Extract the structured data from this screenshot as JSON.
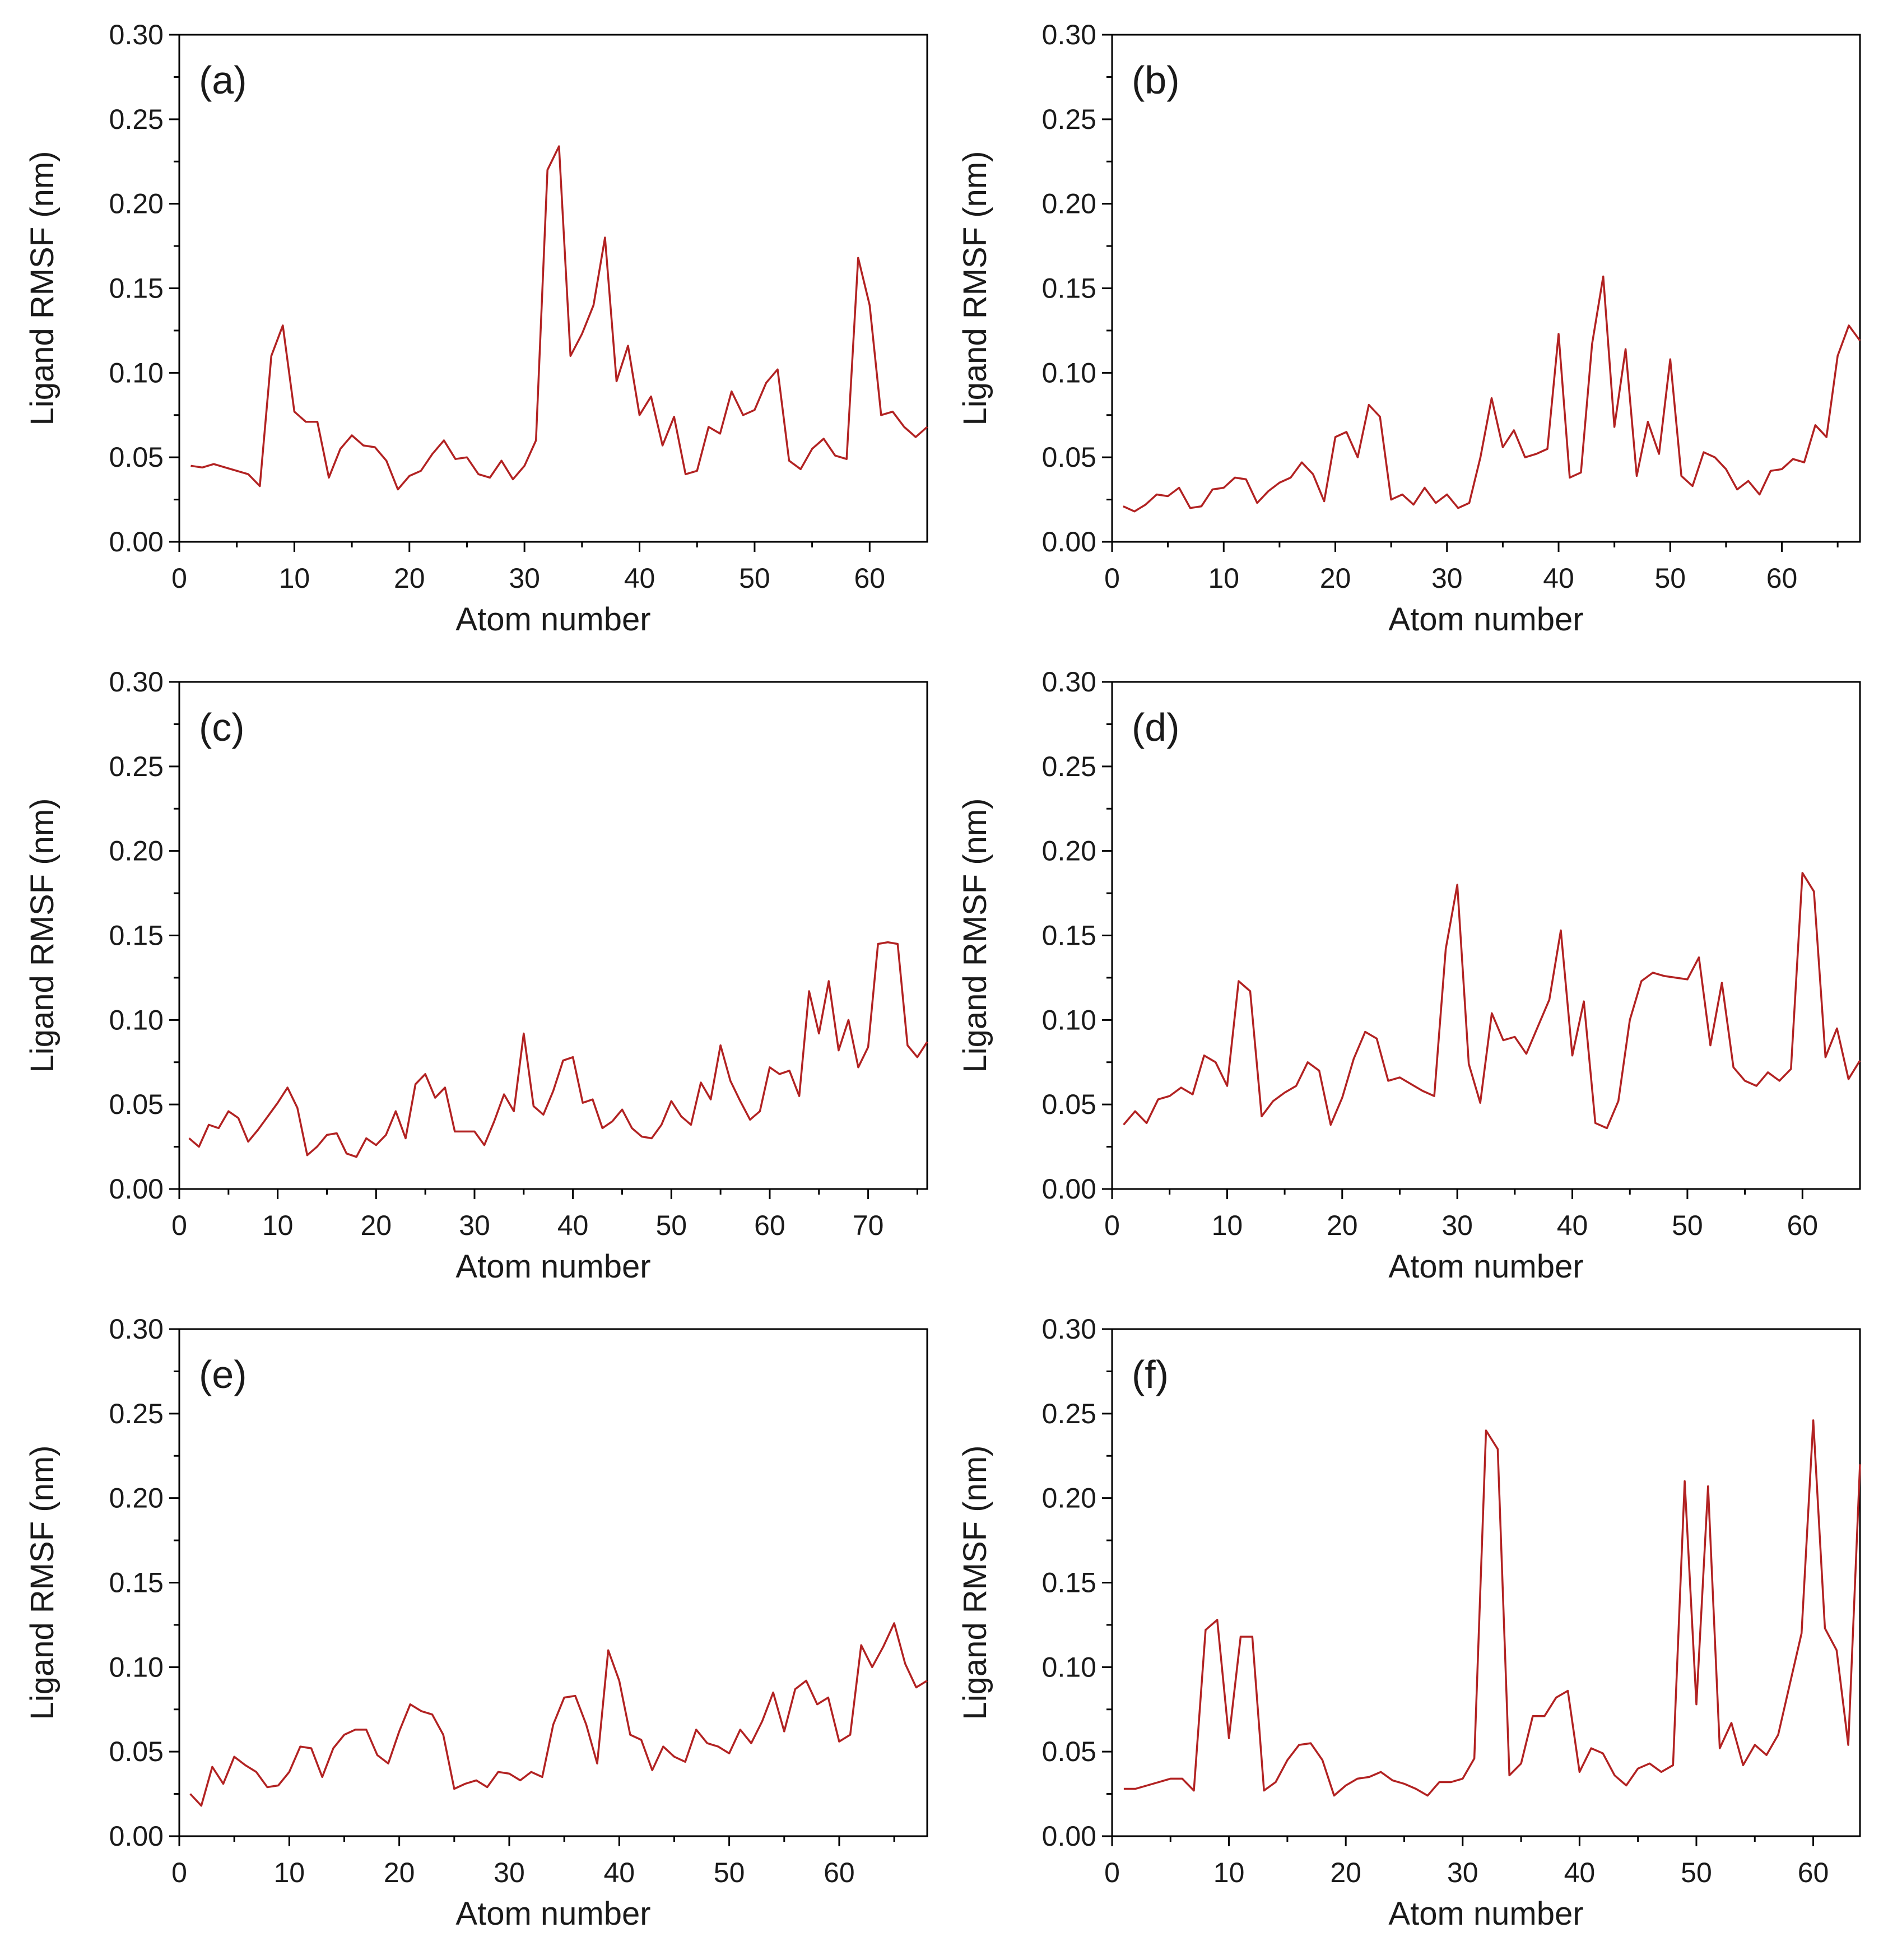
{
  "style": {
    "line_color": "#b22222",
    "axis_color": "#000000",
    "background": "#ffffff"
  },
  "chart_data": [
    {
      "type": "line",
      "panel_label": "(a)",
      "xlabel": "Atom number",
      "ylabel": "Ligand RMSF (nm)",
      "xlim": [
        0,
        65
      ],
      "ylim": [
        0,
        0.3
      ],
      "xticks": [
        0,
        10,
        20,
        30,
        40,
        50,
        60
      ],
      "xtick_labels": [
        "0",
        "10",
        "20",
        "30",
        "40",
        "50",
        "60"
      ],
      "yticks": [
        0,
        0.05,
        0.1,
        0.15,
        0.2,
        0.25,
        0.3
      ],
      "ytick_labels": [
        "0.00",
        "0.05",
        "0.10",
        "0.15",
        "0.20",
        "0.25",
        "0.30"
      ],
      "series": [
        {
          "name": "RMSF",
          "x_start": 1,
          "values": [
            0.045,
            0.044,
            0.046,
            0.044,
            0.042,
            0.04,
            0.033,
            0.11,
            0.128,
            0.077,
            0.071,
            0.071,
            0.038,
            0.055,
            0.063,
            0.057,
            0.056,
            0.048,
            0.031,
            0.039,
            0.042,
            0.052,
            0.06,
            0.049,
            0.05,
            0.04,
            0.038,
            0.048,
            0.037,
            0.045,
            0.06,
            0.22,
            0.234,
            0.11,
            0.123,
            0.14,
            0.18,
            0.095,
            0.116,
            0.075,
            0.086,
            0.057,
            0.074,
            0.04,
            0.042,
            0.068,
            0.064,
            0.089,
            0.075,
            0.078,
            0.094,
            0.102,
            0.048,
            0.043,
            0.055,
            0.061,
            0.051,
            0.049,
            0.168,
            0.14,
            0.075,
            0.077,
            0.068,
            0.062,
            0.068
          ]
        }
      ]
    },
    {
      "type": "line",
      "panel_label": "(b)",
      "xlabel": "Atom number",
      "ylabel": "Ligand RMSF (nm)",
      "xlim": [
        0,
        67
      ],
      "ylim": [
        0,
        0.3
      ],
      "xticks": [
        0,
        10,
        20,
        30,
        40,
        50,
        60
      ],
      "xtick_labels": [
        "0",
        "10",
        "20",
        "30",
        "40",
        "50",
        "60"
      ],
      "yticks": [
        0,
        0.05,
        0.1,
        0.15,
        0.2,
        0.25,
        0.3
      ],
      "ytick_labels": [
        "0.00",
        "0.05",
        "0.10",
        "0.15",
        "0.20",
        "0.25",
        "0.30"
      ],
      "series": [
        {
          "name": "RMSF",
          "x_start": 1,
          "values": [
            0.021,
            0.018,
            0.022,
            0.028,
            0.027,
            0.032,
            0.02,
            0.021,
            0.031,
            0.032,
            0.038,
            0.037,
            0.023,
            0.03,
            0.035,
            0.038,
            0.047,
            0.04,
            0.024,
            0.062,
            0.065,
            0.05,
            0.081,
            0.074,
            0.025,
            0.028,
            0.022,
            0.032,
            0.023,
            0.028,
            0.02,
            0.023,
            0.05,
            0.085,
            0.056,
            0.066,
            0.05,
            0.052,
            0.055,
            0.123,
            0.038,
            0.041,
            0.117,
            0.157,
            0.068,
            0.114,
            0.039,
            0.071,
            0.052,
            0.108,
            0.039,
            0.033,
            0.053,
            0.05,
            0.043,
            0.031,
            0.036,
            0.028,
            0.042,
            0.043,
            0.049,
            0.047,
            0.069,
            0.062,
            0.11,
            0.128,
            0.119
          ]
        }
      ]
    },
    {
      "type": "line",
      "panel_label": "(c)",
      "xlabel": "Atom number",
      "ylabel": "Ligand RMSF (nm)",
      "xlim": [
        0,
        76
      ],
      "ylim": [
        0,
        0.3
      ],
      "xticks": [
        0,
        10,
        20,
        30,
        40,
        50,
        60,
        70
      ],
      "xtick_labels": [
        "0",
        "10",
        "20",
        "30",
        "40",
        "50",
        "60",
        "70"
      ],
      "yticks": [
        0,
        0.05,
        0.1,
        0.15,
        0.2,
        0.25,
        0.3
      ],
      "ytick_labels": [
        "0.00",
        "0.05",
        "0.10",
        "0.15",
        "0.20",
        "0.25",
        "0.30"
      ],
      "series": [
        {
          "name": "RMSF",
          "x_start": 1,
          "values": [
            0.03,
            0.025,
            0.038,
            0.036,
            0.046,
            0.042,
            0.028,
            0.035,
            0.043,
            0.051,
            0.06,
            0.048,
            0.02,
            0.025,
            0.032,
            0.033,
            0.021,
            0.019,
            0.03,
            0.026,
            0.032,
            0.046,
            0.03,
            0.062,
            0.068,
            0.054,
            0.06,
            0.034,
            0.034,
            0.034,
            0.026,
            0.04,
            0.056,
            0.046,
            0.092,
            0.049,
            0.044,
            0.058,
            0.076,
            0.078,
            0.051,
            0.053,
            0.036,
            0.04,
            0.047,
            0.036,
            0.031,
            0.03,
            0.038,
            0.052,
            0.043,
            0.038,
            0.063,
            0.053,
            0.085,
            0.064,
            0.052,
            0.041,
            0.046,
            0.072,
            0.068,
            0.07,
            0.055,
            0.117,
            0.092,
            0.123,
            0.082,
            0.1,
            0.072,
            0.084,
            0.145,
            0.146,
            0.145,
            0.085,
            0.078,
            0.087
          ]
        }
      ]
    },
    {
      "type": "line",
      "panel_label": "(d)",
      "xlabel": "Atom number",
      "ylabel": "Ligand RMSF (nm)",
      "xlim": [
        0,
        65
      ],
      "ylim": [
        0,
        0.3
      ],
      "xticks": [
        0,
        10,
        20,
        30,
        40,
        50,
        60
      ],
      "xtick_labels": [
        "0",
        "10",
        "20",
        "30",
        "40",
        "50",
        "60"
      ],
      "yticks": [
        0,
        0.05,
        0.1,
        0.15,
        0.2,
        0.25,
        0.3
      ],
      "ytick_labels": [
        "0.00",
        "0.05",
        "0.10",
        "0.15",
        "0.20",
        "0.25",
        "0.30"
      ],
      "series": [
        {
          "name": "RMSF",
          "x_start": 1,
          "values": [
            0.038,
            0.046,
            0.039,
            0.053,
            0.055,
            0.06,
            0.056,
            0.079,
            0.075,
            0.061,
            0.123,
            0.117,
            0.043,
            0.052,
            0.057,
            0.061,
            0.075,
            0.07,
            0.038,
            0.054,
            0.077,
            0.093,
            0.089,
            0.064,
            0.066,
            0.062,
            0.058,
            0.055,
            0.142,
            0.18,
            0.074,
            0.051,
            0.104,
            0.088,
            0.09,
            0.08,
            0.096,
            0.112,
            0.153,
            0.079,
            0.111,
            0.039,
            0.036,
            0.052,
            0.1,
            0.123,
            0.128,
            0.126,
            0.125,
            0.124,
            0.137,
            0.085,
            0.122,
            0.072,
            0.064,
            0.061,
            0.069,
            0.064,
            0.071,
            0.187,
            0.176,
            0.078,
            0.095,
            0.065,
            0.076
          ]
        }
      ]
    },
    {
      "type": "line",
      "panel_label": "(e)",
      "xlabel": "Atom number",
      "ylabel": "Ligand RMSF (nm)",
      "xlim": [
        0,
        68
      ],
      "ylim": [
        0,
        0.3
      ],
      "xticks": [
        0,
        10,
        20,
        30,
        40,
        50,
        60
      ],
      "xtick_labels": [
        "0",
        "10",
        "20",
        "30",
        "40",
        "50",
        "60"
      ],
      "yticks": [
        0,
        0.05,
        0.1,
        0.15,
        0.2,
        0.25,
        0.3
      ],
      "ytick_labels": [
        "0.00",
        "0.05",
        "0.10",
        "0.15",
        "0.20",
        "0.25",
        "0.30"
      ],
      "series": [
        {
          "name": "RMSF",
          "x_start": 1,
          "values": [
            0.025,
            0.018,
            0.041,
            0.031,
            0.047,
            0.042,
            0.038,
            0.029,
            0.03,
            0.038,
            0.053,
            0.052,
            0.035,
            0.052,
            0.06,
            0.063,
            0.063,
            0.048,
            0.043,
            0.062,
            0.078,
            0.074,
            0.072,
            0.06,
            0.028,
            0.031,
            0.033,
            0.029,
            0.038,
            0.037,
            0.033,
            0.038,
            0.035,
            0.066,
            0.082,
            0.083,
            0.066,
            0.043,
            0.11,
            0.092,
            0.06,
            0.057,
            0.039,
            0.053,
            0.047,
            0.044,
            0.063,
            0.055,
            0.053,
            0.049,
            0.063,
            0.055,
            0.068,
            0.085,
            0.062,
            0.087,
            0.092,
            0.078,
            0.082,
            0.056,
            0.06,
            0.113,
            0.1,
            0.112,
            0.126,
            0.102,
            0.088,
            0.092
          ]
        }
      ]
    },
    {
      "type": "line",
      "panel_label": "(f)",
      "xlabel": "Atom number",
      "ylabel": "Ligand RMSF (nm)",
      "xlim": [
        0,
        64
      ],
      "ylim": [
        0,
        0.3
      ],
      "xticks": [
        0,
        10,
        20,
        30,
        40,
        50,
        60
      ],
      "xtick_labels": [
        "0",
        "10",
        "20",
        "30",
        "40",
        "50",
        "60"
      ],
      "yticks": [
        0,
        0.05,
        0.1,
        0.15,
        0.2,
        0.25,
        0.3
      ],
      "ytick_labels": [
        "0.00",
        "0.05",
        "0.10",
        "0.15",
        "0.20",
        "0.25",
        "0.30"
      ],
      "series": [
        {
          "name": "RMSF",
          "x_start": 1,
          "values": [
            0.028,
            0.028,
            0.03,
            0.032,
            0.034,
            0.034,
            0.027,
            0.122,
            0.128,
            0.058,
            0.118,
            0.118,
            0.027,
            0.032,
            0.045,
            0.054,
            0.055,
            0.045,
            0.024,
            0.03,
            0.034,
            0.035,
            0.038,
            0.033,
            0.031,
            0.028,
            0.024,
            0.032,
            0.032,
            0.034,
            0.046,
            0.24,
            0.229,
            0.036,
            0.043,
            0.071,
            0.071,
            0.082,
            0.086,
            0.038,
            0.052,
            0.049,
            0.036,
            0.03,
            0.04,
            0.043,
            0.038,
            0.042,
            0.21,
            0.078,
            0.207,
            0.052,
            0.067,
            0.042,
            0.054,
            0.048,
            0.06,
            0.09,
            0.12,
            0.246,
            0.123,
            0.11,
            0.054,
            0.22
          ]
        }
      ]
    }
  ]
}
